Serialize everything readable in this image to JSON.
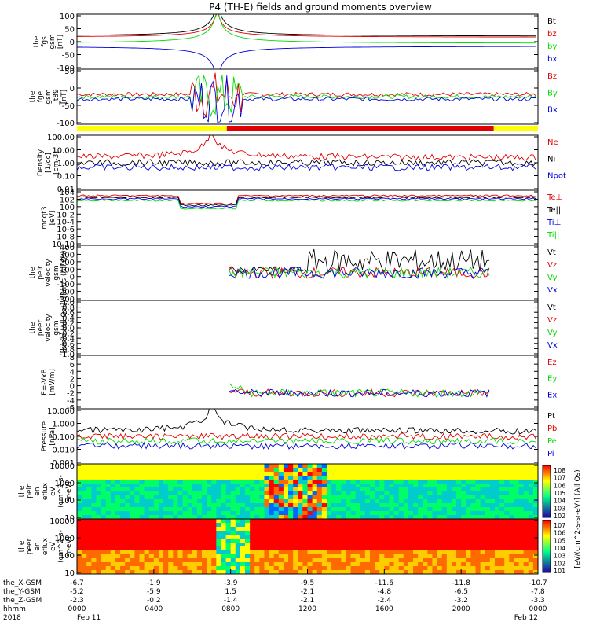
{
  "title": "P4 (TH-E) fields and ground moments overview",
  "colors": {
    "black": "#000000",
    "red": "#e00000",
    "green": "#00dd00",
    "blue": "#0000dd",
    "yellow": "#ffff00",
    "bar_red": "#e00000"
  },
  "chart_data": {
    "type": "line",
    "x_range": [
      0,
      24
    ],
    "x_unit": "hours from 2018-02-11 0000",
    "panels": [
      {
        "name": "fgs",
        "ylabel_lines": [
          "the",
          "fgs",
          "gsm",
          "[nT]"
        ],
        "yticks": [
          100,
          50,
          0,
          -50,
          -100
        ],
        "ylim": [
          -100,
          100
        ],
        "legend": [
          {
            "label": "Bt",
            "color": "black"
          },
          {
            "label": "bz",
            "color": "red"
          },
          {
            "label": "by",
            "color": "green"
          },
          {
            "label": "bx",
            "color": "blue"
          }
        ]
      },
      {
        "name": "fge",
        "ylabel_lines": [
          "the",
          "fge",
          "gsm",
          "_t89",
          "[nT]"
        ],
        "yticks": [
          50,
          0,
          -50,
          -100
        ],
        "ylim": [
          -125,
          100
        ],
        "legend": [
          {
            "label": "Bz",
            "color": "red"
          },
          {
            "label": "By",
            "color": "green"
          },
          {
            "label": "Bx",
            "color": "blue"
          }
        ]
      },
      {
        "name": "density",
        "ylabel_lines": [
          "Density",
          "[1/cc]",
          "[cm-3]"
        ],
        "yticks": [
          "100.00",
          "10.00",
          "1.00",
          "0.10",
          "0.01"
        ],
        "log": true,
        "legend": [
          {
            "label": "Ne",
            "color": "red"
          },
          {
            "label": "Ni",
            "color": "black"
          },
          {
            "label": "Npot",
            "color": "blue"
          }
        ]
      },
      {
        "name": "temperature",
        "ylabel_lines": [
          "moqt3",
          "[eV]"
        ],
        "yticks": [
          "10^4",
          "10^2",
          "10^0",
          "10^-2",
          "10^-4",
          "10^-6",
          "10^-8",
          "10^-10"
        ],
        "log": true,
        "legend": [
          {
            "label": "Te⊥",
            "color": "red"
          },
          {
            "label": "Te||",
            "color": "black"
          },
          {
            "label": "Ti⊥",
            "color": "blue"
          },
          {
            "label": "Ti||",
            "color": "green"
          }
        ]
      },
      {
        "name": "peir_velocity",
        "ylabel_lines": [
          "the",
          "peir",
          "velocity",
          "gsm",
          "[km/s (All Qs)]"
        ],
        "yticks": [
          400,
          300,
          200,
          100,
          0,
          -100,
          -200,
          -300
        ],
        "ylim": [
          -300,
          400
        ],
        "legend": [
          {
            "label": "Vt",
            "color": "black"
          },
          {
            "label": "Vz",
            "color": "red"
          },
          {
            "label": "Vy",
            "color": "green"
          },
          {
            "label": "Vx",
            "color": "blue"
          }
        ]
      },
      {
        "name": "peer_velocity",
        "ylabel_lines": [
          "the",
          "peer",
          "velocity",
          "gsm",
          "[km/s (All Qs)]"
        ],
        "yticks": [
          "1.0",
          "0.8",
          "0.6",
          "0.4",
          "0.2",
          "0.0",
          "-0.2",
          "-0.4",
          "-0.6",
          "-0.8",
          "-1.0"
        ],
        "ylim": [
          -1,
          1
        ],
        "legend": [
          {
            "label": "Vt",
            "color": "black"
          },
          {
            "label": "Vz",
            "color": "red"
          },
          {
            "label": "Vy",
            "color": "green"
          },
          {
            "label": "Vx",
            "color": "blue"
          }
        ]
      },
      {
        "name": "efield",
        "ylabel_lines": [
          "E=-VxB",
          "[mV/m]"
        ],
        "yticks": [
          8,
          6,
          4,
          2,
          0,
          -2,
          -4,
          -6
        ],
        "ylim": [
          -6,
          8
        ],
        "legend": [
          {
            "label": "Ez",
            "color": "red"
          },
          {
            "label": "Ey",
            "color": "green"
          },
          {
            "label": "Ex",
            "color": "blue"
          }
        ]
      },
      {
        "name": "pressure",
        "ylabel_lines": [
          "Pressure",
          "[nPa]"
        ],
        "yticks": [
          "10.000",
          "1.000",
          "0.100",
          "0.010",
          "0.001"
        ],
        "log": true,
        "legend": [
          {
            "label": "Pt",
            "color": "black"
          },
          {
            "label": "Pb",
            "color": "red"
          },
          {
            "label": "Pe",
            "color": "green"
          },
          {
            "label": "Pi",
            "color": "blue"
          }
        ]
      },
      {
        "name": "peir_eflux",
        "ylabel_lines": [
          "the",
          "peir",
          "en",
          "eflux",
          "eV",
          "(cm^2-s-",
          "sr-eV)"
        ],
        "yticks": [
          "10000",
          "1000",
          "100",
          "10"
        ],
        "type": "spectrogram"
      },
      {
        "name": "peer_eflux",
        "ylabel_lines": [
          "the",
          "peer",
          "en",
          "eflux",
          "eV",
          "(cm^2-s-",
          "sr-eV)"
        ],
        "yticks": [
          "10000",
          "1000",
          "100",
          "10"
        ],
        "type": "spectrogram"
      }
    ],
    "colorbar_label": "[eV/(cm^2-s-sr-eV)] (All Qs)",
    "colorbar1_ticks": [
      "10^8",
      "10^7",
      "10^6",
      "10^5",
      "10^4",
      "10^3",
      "10^2"
    ],
    "colorbar2_ticks": [
      "10^7",
      "10^6",
      "10^5",
      "10^4",
      "10^3",
      "10^2",
      "10^1"
    ],
    "x_axis": {
      "row_labels": [
        "the_X-GSM",
        "the_Y-GSM",
        "the_Z-GSM",
        "hhmm",
        "2018"
      ],
      "ticks": [
        {
          "x": 0,
          "X": "-6.7",
          "Y": "-5.2",
          "Z": "-2.3",
          "hhmm": "0000",
          "date": "Feb 11"
        },
        {
          "x": 4,
          "X": "-1.9",
          "Y": "-5.9",
          "Z": "-0.2",
          "hhmm": "0400",
          "date": ""
        },
        {
          "x": 8,
          "X": "-3.9",
          "Y": "1.5",
          "Z": "-1.4",
          "hhmm": "0800",
          "date": ""
        },
        {
          "x": 12,
          "X": "-9.5",
          "Y": "-2.1",
          "Z": "-2.1",
          "hhmm": "1200",
          "date": ""
        },
        {
          "x": 16,
          "X": "-11.6",
          "Y": "-4.8",
          "Z": "-2.4",
          "hhmm": "1600",
          "date": ""
        },
        {
          "x": 20,
          "X": "-11.8",
          "Y": "-6.5",
          "Z": "-3.2",
          "hhmm": "2000",
          "date": ""
        },
        {
          "x": 24,
          "X": "-10.7",
          "Y": "-7.8",
          "Z": "-3.3",
          "hhmm": "0000",
          "date": "Feb 12"
        }
      ]
    },
    "mode_bar": [
      {
        "x0": 0,
        "x1": 7.8,
        "color": "yellow"
      },
      {
        "x0": 7.8,
        "x1": 21.7,
        "color": "bar_red"
      },
      {
        "x0": 21.7,
        "x1": 24,
        "color": "yellow"
      }
    ]
  }
}
